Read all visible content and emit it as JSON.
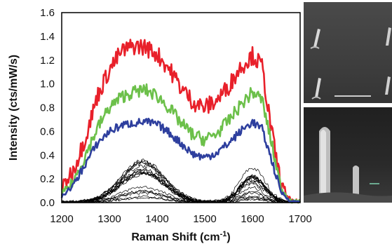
{
  "chart_data": {
    "type": "line",
    "title": "",
    "xlabel": "Raman Shift (cm-1)",
    "xlabel_main": "Raman Shift (cm",
    "xlabel_sup": "-1",
    "xlabel_close": ")",
    "ylabel": "Intensity (cts/mW/s)",
    "xlim": [
      1200,
      1700
    ],
    "ylim": [
      0,
      1.6
    ],
    "xticks": [
      "1200",
      "1300",
      "1400",
      "1500",
      "1600",
      "1700"
    ],
    "yticks": [
      "0.0",
      "0.2",
      "0.4",
      "0.6",
      "0.8",
      "1.0",
      "1.2",
      "1.4",
      "1.6"
    ],
    "grid": false,
    "legend": "none",
    "series": [
      {
        "color": "#e8202a",
        "x": [
          1200,
          1225,
          1250,
          1275,
          1300,
          1325,
          1350,
          1375,
          1400,
          1425,
          1450,
          1475,
          1500,
          1525,
          1550,
          1575,
          1600,
          1620,
          1640,
          1660,
          1680
        ],
        "values": [
          0.12,
          0.28,
          0.55,
          0.9,
          1.12,
          1.27,
          1.32,
          1.31,
          1.25,
          1.13,
          0.97,
          0.85,
          0.8,
          0.86,
          0.98,
          1.14,
          1.24,
          1.15,
          0.6,
          0.15,
          0.02
        ]
      },
      {
        "color": "#6cc04a",
        "x": [
          1200,
          1225,
          1250,
          1275,
          1300,
          1325,
          1350,
          1375,
          1400,
          1425,
          1450,
          1475,
          1500,
          1525,
          1550,
          1575,
          1600,
          1620,
          1640,
          1660,
          1680
        ],
        "values": [
          0.07,
          0.18,
          0.4,
          0.63,
          0.8,
          0.89,
          0.93,
          0.95,
          0.9,
          0.8,
          0.67,
          0.57,
          0.53,
          0.58,
          0.69,
          0.82,
          0.93,
          0.87,
          0.5,
          0.12,
          0.02
        ]
      },
      {
        "color": "#2e3f9e",
        "x": [
          1200,
          1225,
          1250,
          1275,
          1300,
          1325,
          1350,
          1375,
          1400,
          1425,
          1450,
          1475,
          1500,
          1525,
          1550,
          1575,
          1600,
          1620,
          1640,
          1660,
          1680
        ],
        "values": [
          0.05,
          0.15,
          0.33,
          0.5,
          0.6,
          0.65,
          0.67,
          0.68,
          0.66,
          0.59,
          0.5,
          0.41,
          0.38,
          0.42,
          0.5,
          0.6,
          0.68,
          0.62,
          0.36,
          0.09,
          0.01
        ]
      }
    ],
    "background_series": {
      "color": "#000000",
      "count": 18,
      "peak_range": [
        0.04,
        0.38
      ]
    }
  },
  "insets": [
    {
      "name": "SEM image of tilted nanopillar array",
      "scale_bar_color": "#ffffff"
    },
    {
      "name": "SEM image of single nanopillars",
      "scale_bar_color": "#7fd3b0"
    }
  ]
}
